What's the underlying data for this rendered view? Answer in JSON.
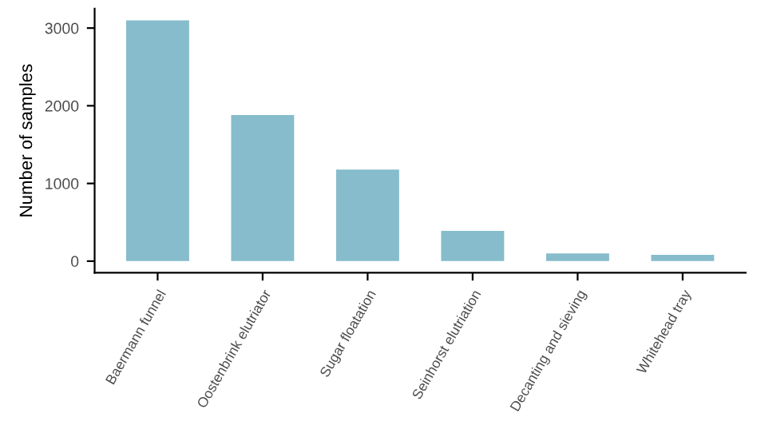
{
  "chart_data": {
    "type": "bar",
    "ylabel": "Number of samples",
    "categories": [
      "Baermann funnel",
      "Oostenbrink elutriator",
      "Sugar floatation",
      "Seinhorst elutriation",
      "Decanting and sieving",
      "Whitehead tray"
    ],
    "values": [
      3100,
      1880,
      1180,
      390,
      100,
      80
    ],
    "color": "#86bccb",
    "ylim": [
      -150,
      3250
    ],
    "yticks": [
      0,
      1000,
      2000,
      3000
    ],
    "grid": false,
    "legend": false
  }
}
